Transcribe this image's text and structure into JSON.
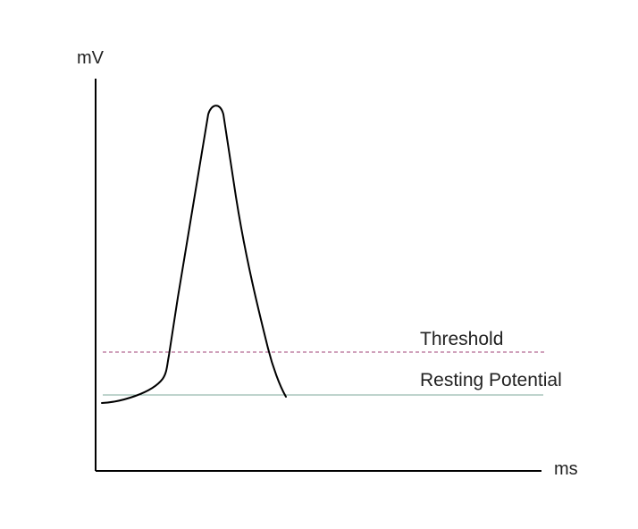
{
  "chart_data": {
    "type": "line",
    "xlabel": "ms",
    "ylabel": "mV",
    "reference_lines": [
      {
        "label": "Threshold",
        "color": "#a0457a",
        "style": "dashed"
      },
      {
        "label": "Resting Potential",
        "color": "#7fa99b",
        "style": "solid"
      }
    ],
    "series_color": "#000000",
    "axis_color": "#000000"
  }
}
